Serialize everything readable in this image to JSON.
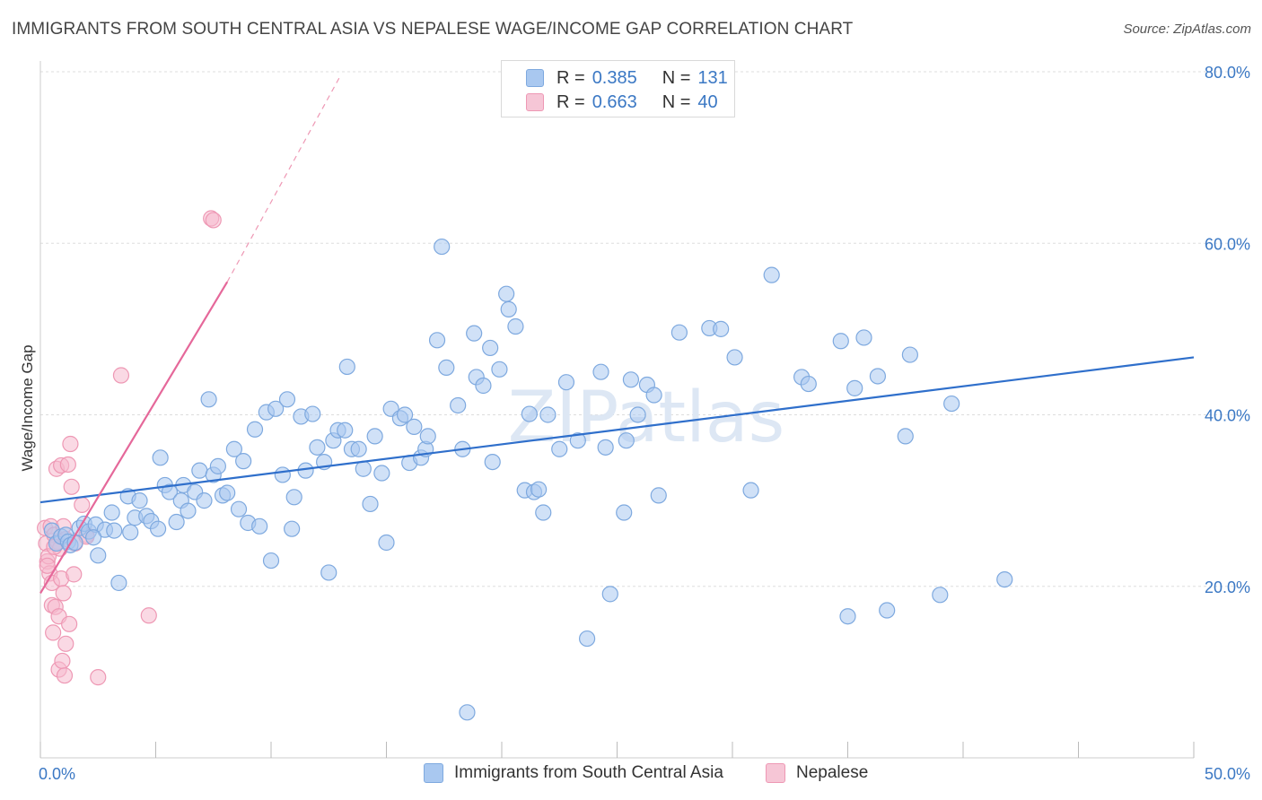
{
  "header": {
    "title": "IMMIGRANTS FROM SOUTH CENTRAL ASIA VS NEPALESE WAGE/INCOME GAP CORRELATION CHART",
    "source": "Source: ZipAtlas.com"
  },
  "legend": {
    "r_label": "R =",
    "n_label": "N =",
    "series_stats": [
      {
        "r": "0.385",
        "n": "131"
      },
      {
        "r": "0.663",
        "n": "40"
      }
    ]
  },
  "colors": {
    "blue_fill": "#a9c8f0",
    "blue_stroke": "#7ea9df",
    "blue_line": "#2f6fcb",
    "pink_fill": "#f6b9cd",
    "pink_stroke": "#ee98b4",
    "pink_line": "#e5689a",
    "grid": "#dddddd",
    "tick_text": "#3b78c4"
  },
  "chart_data": {
    "type": "scatter",
    "title": "IMMIGRANTS FROM SOUTH CENTRAL ASIA VS NEPALESE WAGE/INCOME GAP CORRELATION CHART",
    "xlabel": "",
    "ylabel": "Wage/Income Gap",
    "xlim": [
      0,
      50
    ],
    "ylim": [
      0,
      80
    ],
    "x_ticks": [
      "0.0%",
      "50.0%"
    ],
    "y_ticks": [
      {
        "value": 20,
        "label": "20.0%"
      },
      {
        "value": 40,
        "label": "40.0%"
      },
      {
        "value": 60,
        "label": "60.0%"
      },
      {
        "value": 80,
        "label": "80.0%"
      }
    ],
    "grid": true,
    "legend_position": "top-center",
    "watermark": "ZIPatlas",
    "series": [
      {
        "name": "Immigrants from South Central Asia",
        "color": "#a9c8f0",
        "trend": {
          "x0": 0,
          "y0": 29.8,
          "x1": 50,
          "y1": 46.7
        },
        "points": [
          [
            0.5,
            26.5
          ],
          [
            0.7,
            25.0
          ],
          [
            0.9,
            25.8
          ],
          [
            1.1,
            26.0
          ],
          [
            1.2,
            25.2
          ],
          [
            1.3,
            24.8
          ],
          [
            1.5,
            25.1
          ],
          [
            1.7,
            26.8
          ],
          [
            1.9,
            27.3
          ],
          [
            2.1,
            26.4
          ],
          [
            2.4,
            27.2
          ],
          [
            2.5,
            23.6
          ],
          [
            2.8,
            26.6
          ],
          [
            3.1,
            28.6
          ],
          [
            3.2,
            26.5
          ],
          [
            3.4,
            20.4
          ],
          [
            3.8,
            30.5
          ],
          [
            3.9,
            26.3
          ],
          [
            4.1,
            28.0
          ],
          [
            4.3,
            30.0
          ],
          [
            4.6,
            28.2
          ],
          [
            4.8,
            27.6
          ],
          [
            5.1,
            26.7
          ],
          [
            5.2,
            35.0
          ],
          [
            5.4,
            31.8
          ],
          [
            5.6,
            31.0
          ],
          [
            5.9,
            27.5
          ],
          [
            6.1,
            30.0
          ],
          [
            6.2,
            31.8
          ],
          [
            6.4,
            28.8
          ],
          [
            6.7,
            31.0
          ],
          [
            6.9,
            33.5
          ],
          [
            7.1,
            30.0
          ],
          [
            7.3,
            41.8
          ],
          [
            7.5,
            33.0
          ],
          [
            7.7,
            34.0
          ],
          [
            7.9,
            30.6
          ],
          [
            8.1,
            30.9
          ],
          [
            8.4,
            36.0
          ],
          [
            8.6,
            29.0
          ],
          [
            8.8,
            34.6
          ],
          [
            9.0,
            27.4
          ],
          [
            9.3,
            38.3
          ],
          [
            9.5,
            27.0
          ],
          [
            9.8,
            40.3
          ],
          [
            10.0,
            23.0
          ],
          [
            10.2,
            40.7
          ],
          [
            10.5,
            33.0
          ],
          [
            10.7,
            41.8
          ],
          [
            10.9,
            26.7
          ],
          [
            11.0,
            30.4
          ],
          [
            11.3,
            39.8
          ],
          [
            11.5,
            33.5
          ],
          [
            11.8,
            40.1
          ],
          [
            12.0,
            36.2
          ],
          [
            12.3,
            34.5
          ],
          [
            12.5,
            21.6
          ],
          [
            12.7,
            37.0
          ],
          [
            12.9,
            38.2
          ],
          [
            13.2,
            38.2
          ],
          [
            13.3,
            45.6
          ],
          [
            13.5,
            36.0
          ],
          [
            13.8,
            36.0
          ],
          [
            14.0,
            33.7
          ],
          [
            14.3,
            29.6
          ],
          [
            14.5,
            37.5
          ],
          [
            14.8,
            33.2
          ],
          [
            15.0,
            25.1
          ],
          [
            15.2,
            40.7
          ],
          [
            15.6,
            39.6
          ],
          [
            15.8,
            40.0
          ],
          [
            16.0,
            34.4
          ],
          [
            16.2,
            38.6
          ],
          [
            16.5,
            35.0
          ],
          [
            16.7,
            36.0
          ],
          [
            16.8,
            37.5
          ],
          [
            17.2,
            48.7
          ],
          [
            17.4,
            59.6
          ],
          [
            17.6,
            45.5
          ],
          [
            18.1,
            41.1
          ],
          [
            18.3,
            36.0
          ],
          [
            18.5,
            5.3
          ],
          [
            18.8,
            49.5
          ],
          [
            18.9,
            44.4
          ],
          [
            19.2,
            43.4
          ],
          [
            19.5,
            47.8
          ],
          [
            19.6,
            34.5
          ],
          [
            19.9,
            45.3
          ],
          [
            20.2,
            54.1
          ],
          [
            20.3,
            52.3
          ],
          [
            20.6,
            50.3
          ],
          [
            21.0,
            31.2
          ],
          [
            21.2,
            40.1
          ],
          [
            21.4,
            31.0
          ],
          [
            21.6,
            31.3
          ],
          [
            21.8,
            28.6
          ],
          [
            22.0,
            40.0
          ],
          [
            22.5,
            36.0
          ],
          [
            22.8,
            43.8
          ],
          [
            23.3,
            37.0
          ],
          [
            23.7,
            13.9
          ],
          [
            24.3,
            45.0
          ],
          [
            24.5,
            36.2
          ],
          [
            24.7,
            19.1
          ],
          [
            25.3,
            28.6
          ],
          [
            25.4,
            37.0
          ],
          [
            25.6,
            44.1
          ],
          [
            25.9,
            40.0
          ],
          [
            26.3,
            43.5
          ],
          [
            26.6,
            42.3
          ],
          [
            26.8,
            30.6
          ],
          [
            27.7,
            49.6
          ],
          [
            29.0,
            50.1
          ],
          [
            29.5,
            50.0
          ],
          [
            30.1,
            46.7
          ],
          [
            30.8,
            31.2
          ],
          [
            31.7,
            56.3
          ],
          [
            33.0,
            44.4
          ],
          [
            33.3,
            43.6
          ],
          [
            34.7,
            48.6
          ],
          [
            35.0,
            16.5
          ],
          [
            35.3,
            43.1
          ],
          [
            35.7,
            49.0
          ],
          [
            36.3,
            44.5
          ],
          [
            36.7,
            17.2
          ],
          [
            37.5,
            37.5
          ],
          [
            37.7,
            47.0
          ],
          [
            39.0,
            19.0
          ],
          [
            39.5,
            41.3
          ],
          [
            41.8,
            20.8
          ],
          [
            2.3,
            25.7
          ]
        ]
      },
      {
        "name": "Nepalese",
        "color": "#f6b9cd",
        "trend": {
          "x0": 0,
          "y0": 19.2,
          "x1": 8.1,
          "y1": 55.5
        },
        "trend_extension": {
          "x0": 8.1,
          "y0": 55.5,
          "x1": 13.0,
          "y1": 79.5
        },
        "points": [
          [
            0.2,
            26.8
          ],
          [
            0.25,
            25.0
          ],
          [
            0.3,
            22.9
          ],
          [
            0.35,
            23.5
          ],
          [
            0.4,
            21.5
          ],
          [
            0.45,
            27.0
          ],
          [
            0.5,
            20.4
          ],
          [
            0.5,
            17.8
          ],
          [
            0.55,
            14.6
          ],
          [
            0.6,
            26.0
          ],
          [
            0.65,
            17.6
          ],
          [
            0.7,
            33.7
          ],
          [
            0.75,
            25.2
          ],
          [
            0.8,
            16.5
          ],
          [
            0.8,
            10.3
          ],
          [
            0.85,
            24.4
          ],
          [
            0.9,
            34.1
          ],
          [
            0.9,
            20.9
          ],
          [
            0.95,
            11.3
          ],
          [
            1.0,
            27.0
          ],
          [
            1.0,
            19.2
          ],
          [
            1.05,
            9.6
          ],
          [
            1.1,
            25.5
          ],
          [
            1.1,
            13.3
          ],
          [
            1.2,
            34.2
          ],
          [
            1.25,
            15.6
          ],
          [
            1.3,
            36.6
          ],
          [
            1.35,
            31.6
          ],
          [
            1.45,
            21.4
          ],
          [
            1.8,
            29.5
          ],
          [
            2.0,
            26.0
          ],
          [
            2.5,
            9.4
          ],
          [
            3.5,
            44.6
          ],
          [
            4.7,
            16.6
          ],
          [
            7.4,
            62.9
          ],
          [
            7.5,
            62.7
          ],
          [
            0.3,
            22.4
          ],
          [
            0.6,
            24.6
          ],
          [
            1.5,
            25.0
          ],
          [
            2.0,
            25.8
          ]
        ]
      }
    ]
  },
  "bottom_legend": [
    {
      "label": "Immigrants from South Central Asia"
    },
    {
      "label": "Nepalese"
    }
  ]
}
